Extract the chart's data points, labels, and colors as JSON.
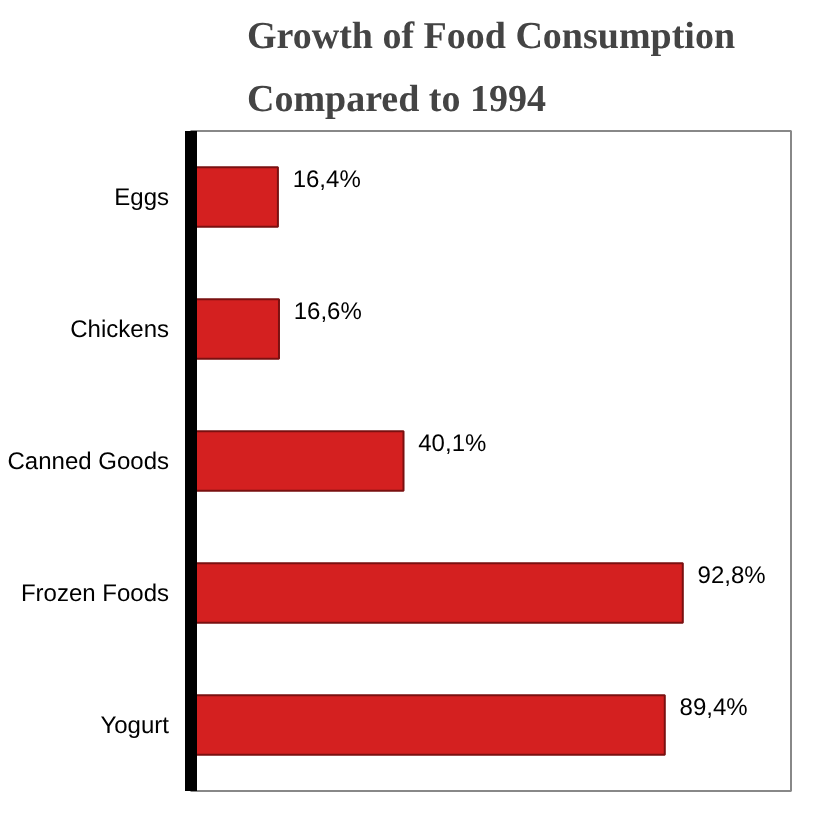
{
  "chart_data": {
    "type": "bar",
    "orientation": "horizontal",
    "title": "Growth of Food Consumption Compared to 1994",
    "categories": [
      "Eggs",
      "Chickens",
      "Canned Goods",
      "Frozen Foods",
      "Yogurt"
    ],
    "values": [
      16.4,
      16.6,
      40.1,
      92.8,
      89.4
    ],
    "value_labels": [
      "16,4%",
      "16,6%",
      "40,1%",
      "92,8%",
      "89,4%"
    ],
    "color": "#d42020",
    "grid": false
  }
}
